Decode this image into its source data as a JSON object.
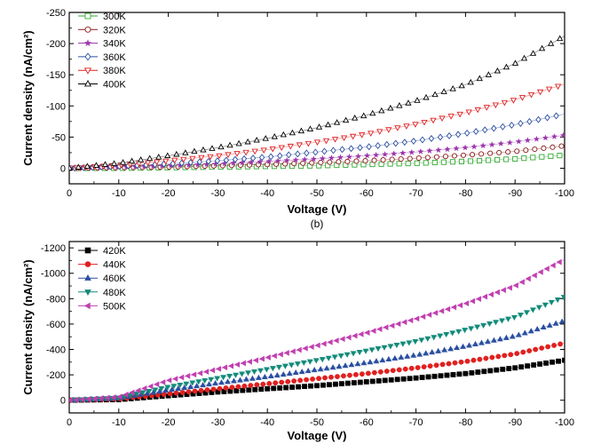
{
  "chart_data": [
    {
      "type": "scatter",
      "panel_label": "",
      "caption": "(b)",
      "xlabel": "Voltage (V)",
      "ylabel": "Current density (nA/cm²)",
      "xlim": [
        0,
        -100
      ],
      "ylim": [
        25,
        -250
      ],
      "x_ticks": [
        0,
        -10,
        -20,
        -30,
        -40,
        -50,
        -60,
        -70,
        -80,
        -90,
        -100
      ],
      "y_ticks": [
        0,
        -50,
        -100,
        -150,
        -200,
        -250
      ],
      "legend_position": "top-left",
      "series": [
        {
          "name": "300K",
          "marker": "square-open",
          "color": "#33aa33",
          "points": [
            [
              0,
              0
            ],
            [
              -10,
              0
            ],
            [
              -20,
              -1
            ],
            [
              -30,
              -2
            ],
            [
              -40,
              -3
            ],
            [
              -50,
              -4
            ],
            [
              -60,
              -6
            ],
            [
              -70,
              -8
            ],
            [
              -80,
              -11
            ],
            [
              -90,
              -15
            ],
            [
              -100,
              -21
            ]
          ]
        },
        {
          "name": "320K",
          "marker": "circle-open",
          "color": "#8b1a1a",
          "points": [
            [
              0,
              0
            ],
            [
              -10,
              -1
            ],
            [
              -20,
              -2
            ],
            [
              -30,
              -4
            ],
            [
              -40,
              -6
            ],
            [
              -50,
              -9
            ],
            [
              -60,
              -12
            ],
            [
              -70,
              -16
            ],
            [
              -80,
              -21
            ],
            [
              -90,
              -27
            ],
            [
              -100,
              -36
            ]
          ]
        },
        {
          "name": "340K",
          "marker": "star",
          "color": "#9933aa",
          "points": [
            [
              0,
              0
            ],
            [
              -10,
              -2
            ],
            [
              -20,
              -4
            ],
            [
              -30,
              -7
            ],
            [
              -40,
              -11
            ],
            [
              -50,
              -15
            ],
            [
              -60,
              -20
            ],
            [
              -70,
              -26
            ],
            [
              -80,
              -33
            ],
            [
              -90,
              -42
            ],
            [
              -100,
              -53
            ]
          ]
        },
        {
          "name": "360K",
          "marker": "diamond-open",
          "color": "#2a4fa0",
          "points": [
            [
              0,
              0
            ],
            [
              -10,
              -3
            ],
            [
              -20,
              -7
            ],
            [
              -30,
              -12
            ],
            [
              -40,
              -18
            ],
            [
              -50,
              -26
            ],
            [
              -60,
              -34
            ],
            [
              -70,
              -44
            ],
            [
              -80,
              -56
            ],
            [
              -90,
              -70
            ],
            [
              -100,
              -87
            ]
          ]
        },
        {
          "name": "380K",
          "marker": "triangle-down-open",
          "color": "#e02020",
          "points": [
            [
              0,
              0
            ],
            [
              -10,
              -5
            ],
            [
              -20,
              -12
            ],
            [
              -30,
              -20
            ],
            [
              -40,
              -30
            ],
            [
              -50,
              -42
            ],
            [
              -60,
              -55
            ],
            [
              -70,
              -71
            ],
            [
              -80,
              -89
            ],
            [
              -90,
              -110
            ],
            [
              -100,
              -135
            ]
          ]
        },
        {
          "name": "400K",
          "marker": "triangle-up-open",
          "color": "#000000",
          "points": [
            [
              0,
              0
            ],
            [
              -10,
              -8
            ],
            [
              -20,
              -20
            ],
            [
              -30,
              -33
            ],
            [
              -40,
              -48
            ],
            [
              -50,
              -65
            ],
            [
              -60,
              -85
            ],
            [
              -70,
              -108
            ],
            [
              -80,
              -134
            ],
            [
              -90,
              -168
            ],
            [
              -100,
              -212
            ]
          ]
        }
      ]
    },
    {
      "type": "scatter",
      "panel_label": "",
      "caption": "",
      "xlabel": "Voltage (V)",
      "ylabel": "Current density (nA/cm²)",
      "xlim": [
        0,
        -100
      ],
      "ylim": [
        100,
        -1250
      ],
      "x_ticks": [
        0,
        -10,
        -20,
        -30,
        -40,
        -50,
        -60,
        -70,
        -80,
        -90,
        -100
      ],
      "y_ticks": [
        0,
        -200,
        -400,
        -600,
        -800,
        -1000,
        -1200
      ],
      "legend_position": "top-left",
      "series": [
        {
          "name": "420K",
          "marker": "square",
          "color": "#000000",
          "points": [
            [
              0,
              0
            ],
            [
              -10,
              -5
            ],
            [
              -20,
              -35
            ],
            [
              -30,
              -65
            ],
            [
              -40,
              -90
            ],
            [
              -50,
              -115
            ],
            [
              -60,
              -145
            ],
            [
              -70,
              -175
            ],
            [
              -80,
              -210
            ],
            [
              -90,
              -255
            ],
            [
              -100,
              -315
            ]
          ]
        },
        {
          "name": "440K",
          "marker": "circle",
          "color": "#e02020",
          "points": [
            [
              0,
              0
            ],
            [
              -10,
              -10
            ],
            [
              -20,
              -50
            ],
            [
              -30,
              -90
            ],
            [
              -40,
              -130
            ],
            [
              -50,
              -170
            ],
            [
              -60,
              -210
            ],
            [
              -70,
              -255
            ],
            [
              -80,
              -305
            ],
            [
              -90,
              -365
            ],
            [
              -100,
              -450
            ]
          ]
        },
        {
          "name": "460K",
          "marker": "triangle-up",
          "color": "#2a4fa0",
          "points": [
            [
              0,
              0
            ],
            [
              -10,
              -15
            ],
            [
              -20,
              -80
            ],
            [
              -30,
              -135
            ],
            [
              -40,
              -185
            ],
            [
              -50,
              -240
            ],
            [
              -60,
              -295
            ],
            [
              -70,
              -355
            ],
            [
              -80,
              -425
            ],
            [
              -90,
              -505
            ],
            [
              -100,
              -625
            ]
          ]
        },
        {
          "name": "480K",
          "marker": "triangle-down",
          "color": "#138a7a",
          "points": [
            [
              0,
              0
            ],
            [
              -10,
              -20
            ],
            [
              -20,
              -105
            ],
            [
              -30,
              -175
            ],
            [
              -40,
              -245
            ],
            [
              -50,
              -315
            ],
            [
              -60,
              -390
            ],
            [
              -70,
              -465
            ],
            [
              -80,
              -555
            ],
            [
              -90,
              -655
            ],
            [
              -100,
              -815
            ]
          ]
        },
        {
          "name": "500K",
          "marker": "triangle-left",
          "color": "#c040b0",
          "points": [
            [
              0,
              0
            ],
            [
              -10,
              -25
            ],
            [
              -20,
              -155
            ],
            [
              -30,
              -245
            ],
            [
              -40,
              -335
            ],
            [
              -50,
              -430
            ],
            [
              -60,
              -530
            ],
            [
              -70,
              -640
            ],
            [
              -80,
              -760
            ],
            [
              -90,
              -900
            ],
            [
              -100,
              -1110
            ]
          ]
        }
      ]
    }
  ]
}
